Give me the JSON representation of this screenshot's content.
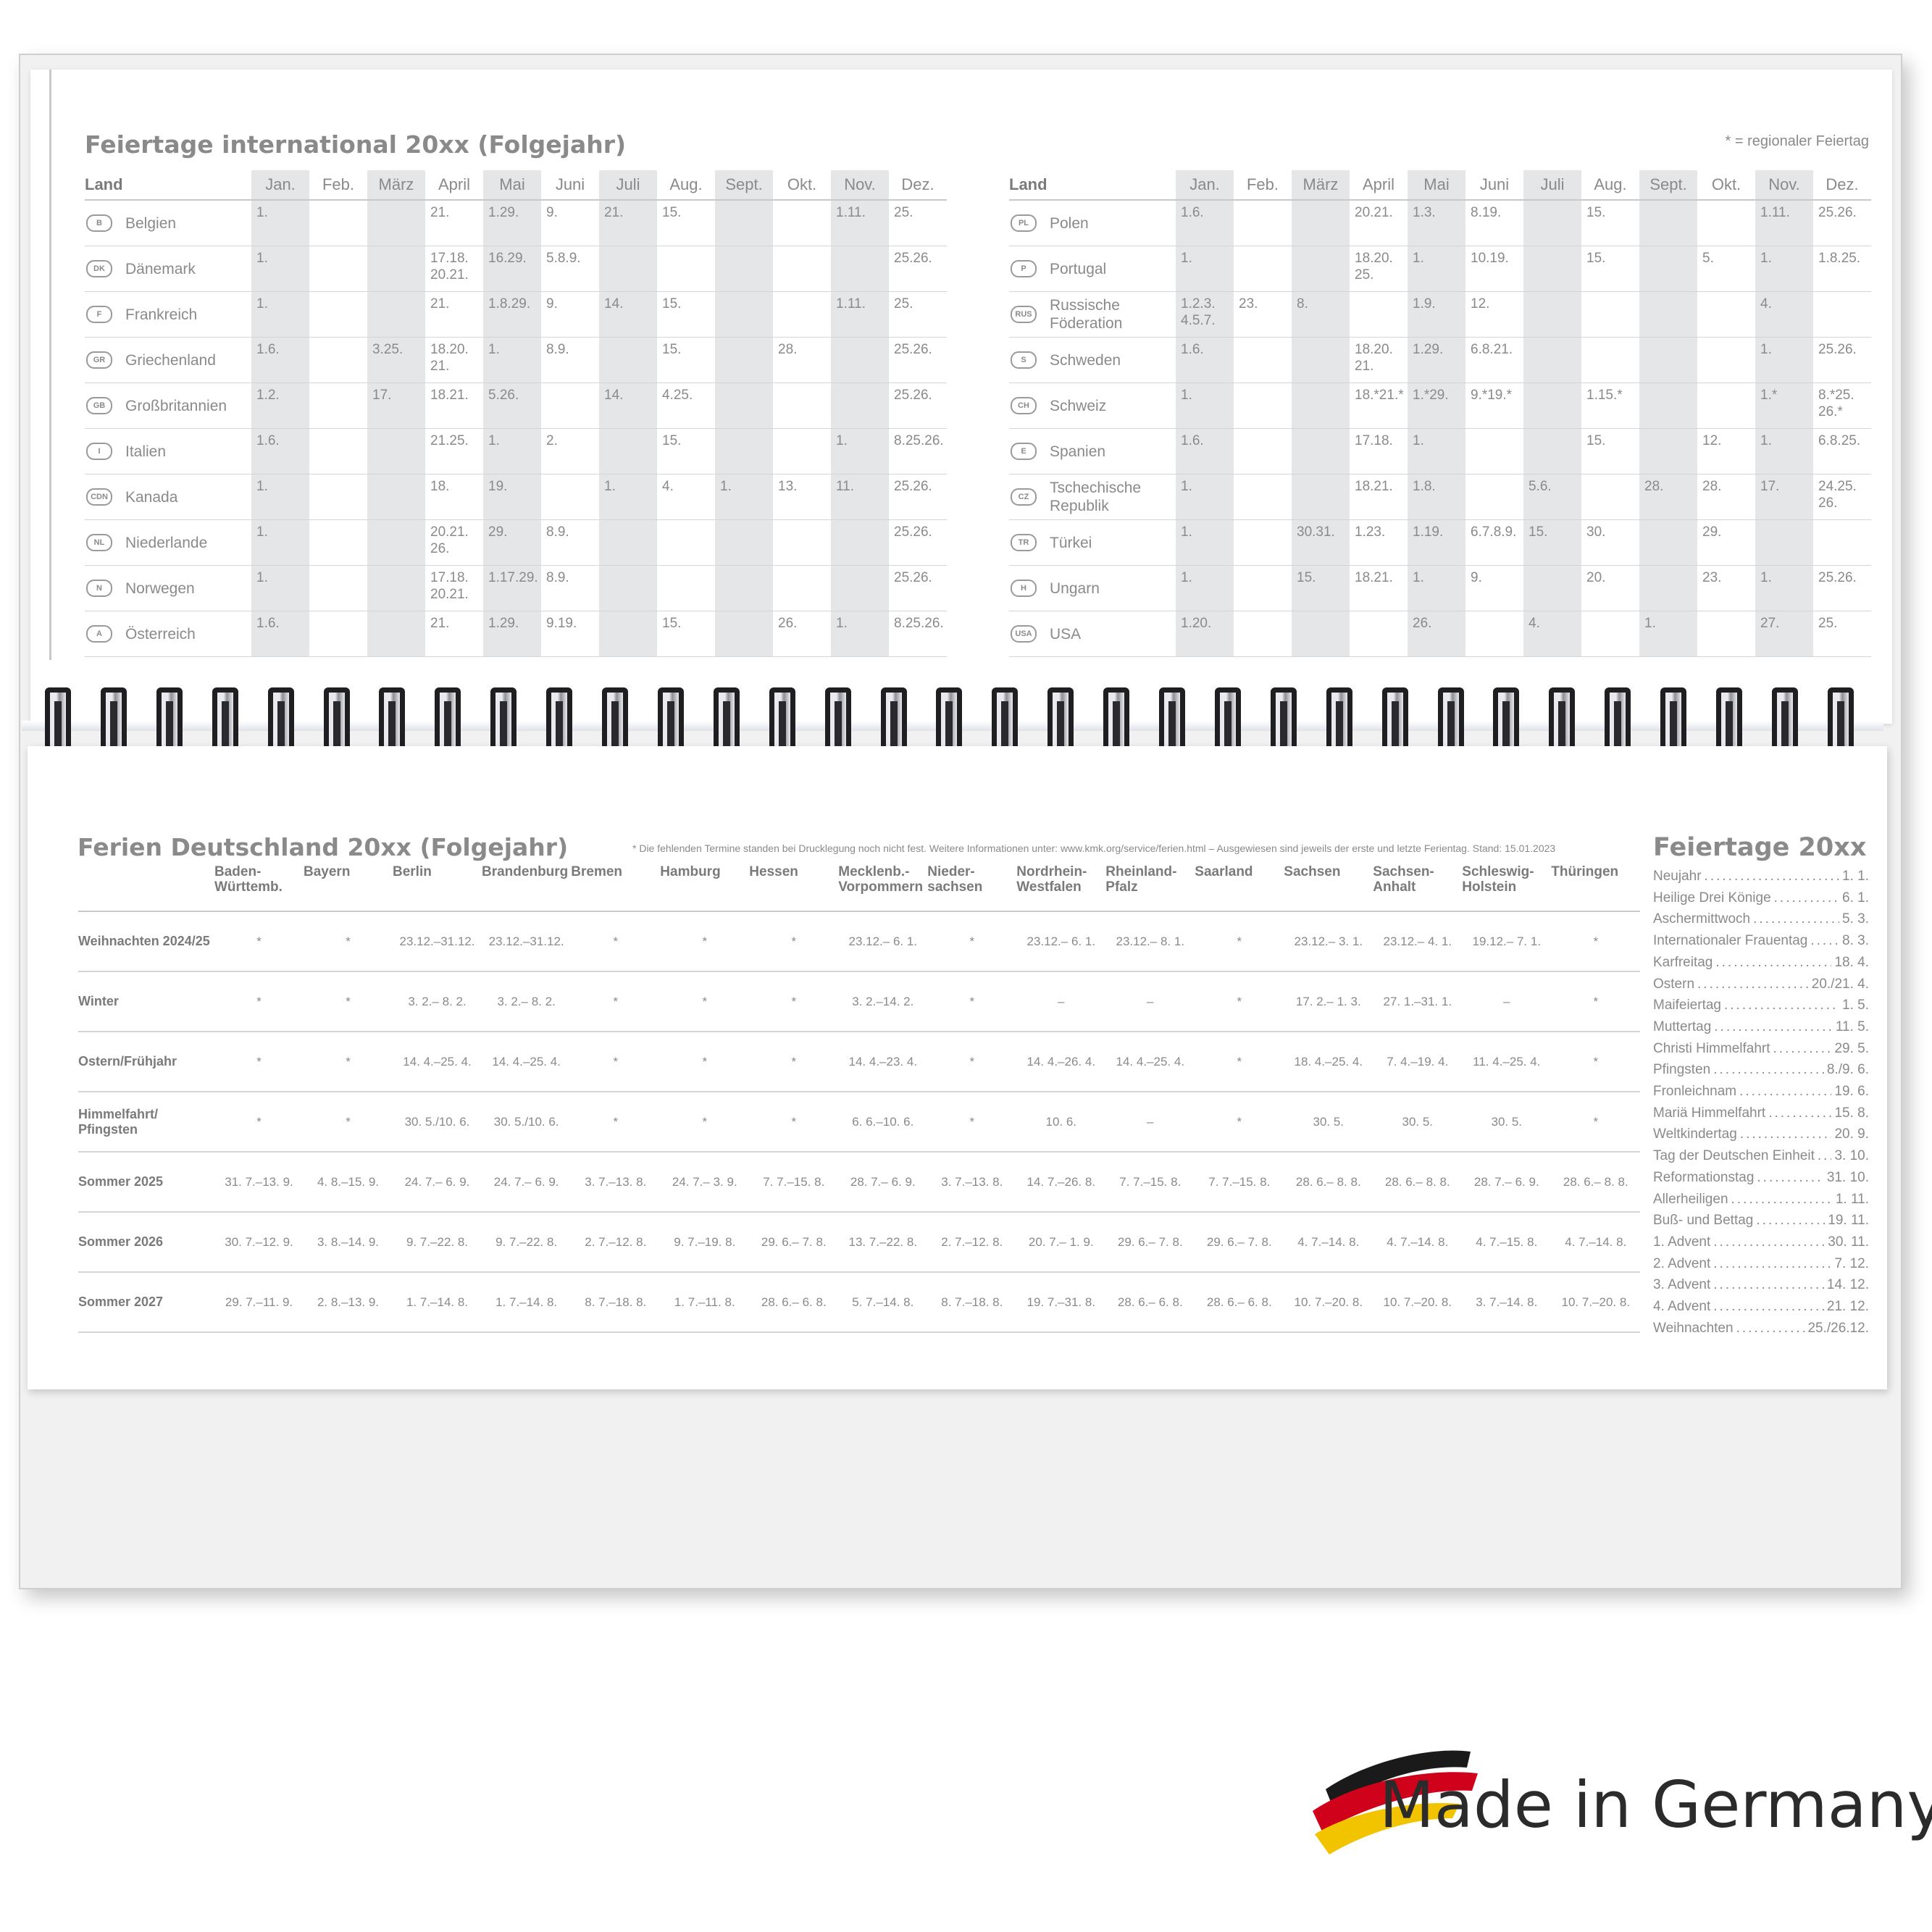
{
  "international": {
    "title": "Feiertage international 20xx (Folgejahr)",
    "note": "* = regionaler Feiertag",
    "land_header": "Land",
    "months": [
      "Jan.",
      "Feb.",
      "März",
      "April",
      "Mai",
      "Juni",
      "Juli",
      "Aug.",
      "Sept.",
      "Okt.",
      "Nov.",
      "Dez."
    ],
    "left": [
      {
        "code": "B",
        "name": "Belgien",
        "days": [
          "1.",
          "",
          "",
          "21.",
          "1.29.",
          "9.",
          "21.",
          "15.",
          "",
          "",
          "1.11.",
          "25."
        ]
      },
      {
        "code": "DK",
        "name": "Dänemark",
        "days": [
          "1.",
          "",
          "",
          "17.18. 20.21.",
          "16.29.",
          "5.8.9.",
          "",
          "",
          "",
          "",
          "",
          "25.26."
        ]
      },
      {
        "code": "F",
        "name": "Frankreich",
        "days": [
          "1.",
          "",
          "",
          "21.",
          "1.8.29.",
          "9.",
          "14.",
          "15.",
          "",
          "",
          "1.11.",
          "25."
        ]
      },
      {
        "code": "GR",
        "name": "Griechenland",
        "days": [
          "1.6.",
          "",
          "3.25.",
          "18.20. 21.",
          "1.",
          "8.9.",
          "",
          "15.",
          "",
          "28.",
          "",
          "25.26."
        ]
      },
      {
        "code": "GB",
        "name": "Großbritannien",
        "days": [
          "1.2.",
          "",
          "17.",
          "18.21.",
          "5.26.",
          "",
          "14.",
          "4.25.",
          "",
          "",
          "",
          "25.26."
        ]
      },
      {
        "code": "I",
        "name": "Italien",
        "days": [
          "1.6.",
          "",
          "",
          "21.25.",
          "1.",
          "2.",
          "",
          "15.",
          "",
          "",
          "1.",
          "8.25.26."
        ]
      },
      {
        "code": "CDN",
        "name": "Kanada",
        "days": [
          "1.",
          "",
          "",
          "18.",
          "19.",
          "",
          "1.",
          "4.",
          "1.",
          "13.",
          "11.",
          "25.26."
        ]
      },
      {
        "code": "NL",
        "name": "Niederlande",
        "days": [
          "1.",
          "",
          "",
          "20.21. 26.",
          "29.",
          "8.9.",
          "",
          "",
          "",
          "",
          "",
          "25.26."
        ]
      },
      {
        "code": "N",
        "name": "Norwegen",
        "days": [
          "1.",
          "",
          "",
          "17.18. 20.21.",
          "1.17.29.",
          "8.9.",
          "",
          "",
          "",
          "",
          "",
          "25.26."
        ]
      },
      {
        "code": "A",
        "name": "Österreich",
        "days": [
          "1.6.",
          "",
          "",
          "21.",
          "1.29.",
          "9.19.",
          "",
          "15.",
          "",
          "26.",
          "1.",
          "8.25.26."
        ]
      }
    ],
    "right": [
      {
        "code": "PL",
        "name": "Polen",
        "days": [
          "1.6.",
          "",
          "",
          "20.21.",
          "1.3.",
          "8.19.",
          "",
          "15.",
          "",
          "",
          "1.11.",
          "25.26."
        ]
      },
      {
        "code": "P",
        "name": "Portugal",
        "days": [
          "1.",
          "",
          "",
          "18.20. 25.",
          "1.",
          "10.19.",
          "",
          "15.",
          "",
          "5.",
          "1.",
          "1.8.25."
        ]
      },
      {
        "code": "RUS",
        "name": "Russische Föderation",
        "days": [
          "1.2.3. 4.5.7.",
          "23.",
          "8.",
          "",
          "1.9.",
          "12.",
          "",
          "",
          "",
          "",
          "4.",
          ""
        ]
      },
      {
        "code": "S",
        "name": "Schweden",
        "days": [
          "1.6.",
          "",
          "",
          "18.20. 21.",
          "1.29.",
          "6.8.21.",
          "",
          "",
          "",
          "",
          "1.",
          "25.26."
        ]
      },
      {
        "code": "CH",
        "name": "Schweiz",
        "days": [
          "1.",
          "",
          "",
          "18.*21.*",
          "1.*29.",
          "9.*19.*",
          "",
          "1.15.*",
          "",
          "",
          "1.*",
          "8.*25. 26.*"
        ]
      },
      {
        "code": "E",
        "name": "Spanien",
        "days": [
          "1.6.",
          "",
          "",
          "17.18.",
          "1.",
          "",
          "",
          "15.",
          "",
          "12.",
          "1.",
          "6.8.25."
        ]
      },
      {
        "code": "CZ",
        "name": "Tschechische Republik",
        "days": [
          "1.",
          "",
          "",
          "18.21.",
          "1.8.",
          "",
          "5.6.",
          "",
          "28.",
          "28.",
          "17.",
          "24.25. 26."
        ]
      },
      {
        "code": "TR",
        "name": "Türkei",
        "days": [
          "1.",
          "",
          "30.31.",
          "1.23.",
          "1.19.",
          "6.7.8.9.",
          "15.",
          "30.",
          "",
          "29.",
          "",
          ""
        ]
      },
      {
        "code": "H",
        "name": "Ungarn",
        "days": [
          "1.",
          "",
          "15.",
          "18.21.",
          "1.",
          "9.",
          "",
          "20.",
          "",
          "23.",
          "1.",
          "25.26."
        ]
      },
      {
        "code": "USA",
        "name": "USA",
        "days": [
          "1.20.",
          "",
          "",
          "",
          "26.",
          "",
          "4.",
          "",
          "1.",
          "",
          "27.",
          "25."
        ]
      }
    ]
  },
  "ferien": {
    "title": "Ferien Deutschland 20xx (Folgejahr)",
    "note": "* Die fehlenden Termine standen bei Drucklegung noch nicht fest. Weitere Informationen unter: www.kmk.org/service/ferien.html – Ausgewiesen sind jeweils der erste und letzte Ferientag. Stand: 15.01.2023",
    "states": [
      "Baden-\nWürttemb.",
      "Bayern",
      "Berlin",
      "Brandenburg",
      "Bremen",
      "Hamburg",
      "Hessen",
      "Mecklenb.-\nVorpommern",
      "Nieder-\nsachsen",
      "Nordrhein-\nWestfalen",
      "Rheinland-\nPfalz",
      "Saarland",
      "Sachsen",
      "Sachsen-\nAnhalt",
      "Schleswig-\nHolstein",
      "Thüringen"
    ],
    "rows": [
      {
        "label": "Weihnachten 2024/25",
        "cells": [
          "*",
          "*",
          "23.12.–31.12.",
          "23.12.–31.12.",
          "*",
          "*",
          "*",
          "23.12.– 6. 1.",
          "*",
          "23.12.– 6. 1.",
          "23.12.– 8. 1.",
          "*",
          "23.12.– 3. 1.",
          "23.12.– 4. 1.",
          "19.12.– 7. 1.",
          "*"
        ]
      },
      {
        "label": "Winter",
        "cells": [
          "*",
          "*",
          "3. 2.– 8. 2.",
          "3. 2.– 8. 2.",
          "*",
          "*",
          "*",
          "3. 2.–14. 2.",
          "*",
          "–",
          "–",
          "*",
          "17. 2.– 1. 3.",
          "27. 1.–31. 1.",
          "–",
          "*"
        ]
      },
      {
        "label": "Ostern/Frühjahr",
        "cells": [
          "*",
          "*",
          "14. 4.–25. 4.",
          "14. 4.–25. 4.",
          "*",
          "*",
          "*",
          "14. 4.–23. 4.",
          "*",
          "14. 4.–26. 4.",
          "14. 4.–25. 4.",
          "*",
          "18. 4.–25. 4.",
          "7. 4.–19. 4.",
          "11. 4.–25. 4.",
          "*"
        ]
      },
      {
        "label": "Himmelfahrt/\nPfingsten",
        "cells": [
          "*",
          "*",
          "30. 5./10. 6.",
          "30. 5./10. 6.",
          "*",
          "*",
          "*",
          "6. 6.–10. 6.",
          "*",
          "10. 6.",
          "–",
          "*",
          "30. 5.",
          "30. 5.",
          "30. 5.",
          "*"
        ]
      },
      {
        "label": "Sommer 2025",
        "cells": [
          "31. 7.–13. 9.",
          "4. 8.–15. 9.",
          "24. 7.– 6. 9.",
          "24. 7.– 6. 9.",
          "3. 7.–13. 8.",
          "24. 7.– 3. 9.",
          "7. 7.–15. 8.",
          "28. 7.– 6. 9.",
          "3. 7.–13. 8.",
          "14. 7.–26. 8.",
          "7. 7.–15. 8.",
          "7. 7.–15. 8.",
          "28. 6.– 8. 8.",
          "28. 6.– 8. 8.",
          "28. 7.– 6. 9.",
          "28. 6.– 8. 8."
        ]
      },
      {
        "label": "Sommer 2026",
        "cells": [
          "30. 7.–12. 9.",
          "3. 8.–14. 9.",
          "9. 7.–22. 8.",
          "9. 7.–22. 8.",
          "2. 7.–12. 8.",
          "9. 7.–19. 8.",
          "29. 6.– 7. 8.",
          "13. 7.–22. 8.",
          "2. 7.–12. 8.",
          "20. 7.– 1. 9.",
          "29. 6.– 7. 8.",
          "29. 6.– 7. 8.",
          "4. 7.–14. 8.",
          "4. 7.–14. 8.",
          "4. 7.–15. 8.",
          "4. 7.–14. 8."
        ]
      },
      {
        "label": "Sommer 2027",
        "cells": [
          "29. 7.–11. 9.",
          "2. 8.–13. 9.",
          "1. 7.–14. 8.",
          "1. 7.–14. 8.",
          "8. 7.–18. 8.",
          "1. 7.–11. 8.",
          "28. 6.– 6. 8.",
          "5. 7.–14. 8.",
          "8. 7.–18. 8.",
          "19. 7.–31. 8.",
          "28. 6.– 6. 8.",
          "28. 6.– 6. 8.",
          "10. 7.–20. 8.",
          "10. 7.–20. 8.",
          "3. 7.–14. 8.",
          "10. 7.–20. 8."
        ]
      }
    ]
  },
  "feiertage": {
    "title": "Feiertage 20xx",
    "items": [
      {
        "name": "Neujahr",
        "date": "1.  1."
      },
      {
        "name": "Heilige Drei Könige",
        "date": "6.  1."
      },
      {
        "name": "Aschermittwoch",
        "date": "5.  3."
      },
      {
        "name": "Internationaler Frauentag",
        "date": "8.  3."
      },
      {
        "name": "Karfreitag",
        "date": "18.  4."
      },
      {
        "name": "Ostern",
        "date": "20./21.  4."
      },
      {
        "name": "Maifeiertag",
        "date": "1.  5."
      },
      {
        "name": "Muttertag",
        "date": "11.  5."
      },
      {
        "name": "Christi Himmelfahrt",
        "date": "29.  5."
      },
      {
        "name": "Pfingsten",
        "date": "8./9.  6."
      },
      {
        "name": "Fronleichnam",
        "date": "19.  6."
      },
      {
        "name": "Mariä Himmelfahrt",
        "date": "15.  8."
      },
      {
        "name": "Weltkindertag",
        "date": "20.  9."
      },
      {
        "name": "Tag der Deutschen Einheit",
        "date": "3. 10."
      },
      {
        "name": "Reformationstag",
        "date": "31. 10."
      },
      {
        "name": "Allerheiligen",
        "date": "1. 11."
      },
      {
        "name": "Buß- und Bettag",
        "date": "19. 11."
      },
      {
        "name": "1. Advent",
        "date": "30. 11."
      },
      {
        "name": "2. Advent",
        "date": "7. 12."
      },
      {
        "name": "3. Advent",
        "date": "14. 12."
      },
      {
        "name": "4. Advent",
        "date": "21. 12."
      },
      {
        "name": "Weihnachten",
        "date": "25./26.12."
      }
    ]
  },
  "logo": {
    "text": "Made in Germany",
    "colors": [
      "#1a1a1a",
      "#d0021b",
      "#f2c400"
    ]
  },
  "colors": {
    "shade": "#e4e6e8",
    "text": "#8a8a8a"
  }
}
